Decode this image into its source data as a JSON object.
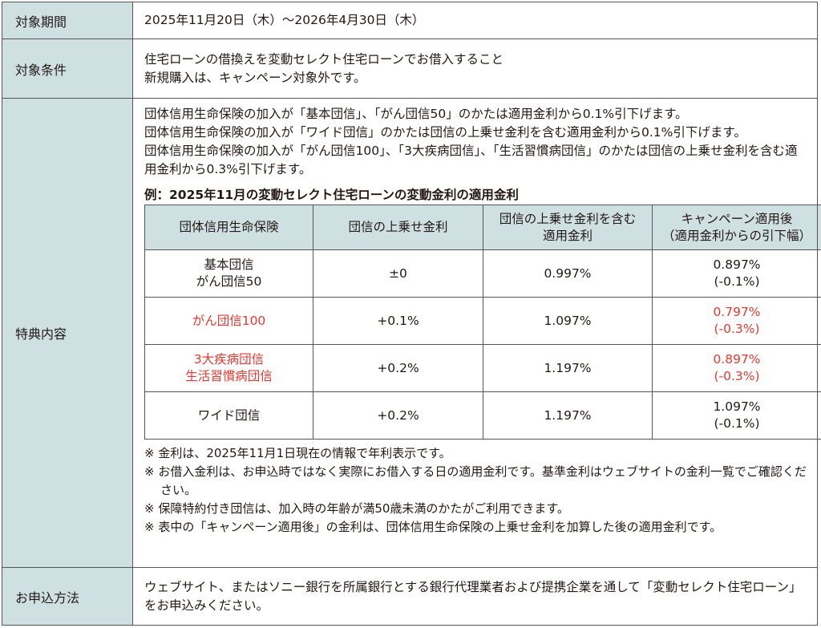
{
  "rows": {
    "period": {
      "label": "対象期間",
      "text": "2025年11月20日（木）〜2026年4月30日（木）"
    },
    "conditions": {
      "label": "対象条件",
      "lines": [
        "住宅ローンの借換えを変動セレクト住宅ローンでお借入すること",
        "新規購入は、キャンペーン対象外です。"
      ]
    },
    "benefits": {
      "label": "特典内容",
      "paragraphs": [
        "団体信用生命保険の加入が「基本団信」、「がん団信50」のかたは適用金利から0.1%引下げます。",
        "団体信用生命保険の加入が「ワイド団信」のかたは団信の上乗せ金利を含む適用金利から0.1%引下げます。",
        "団体信用生命保険の加入が「がん団信100」、「3大疾病団信」、「生活習慣病団信」のかたは団信の上乗せ金利を含む適用金利から0.3%引下げます。"
      ],
      "example_title": "例：2025年11月の変動セレクト住宅ローンの変動金利の適用金利",
      "table": {
        "headers": [
          [
            "団体信用生命保険"
          ],
          [
            "団信の上乗せ金利"
          ],
          [
            "団信の上乗せ金利を含む",
            "適用金利"
          ],
          [
            "キャンペーン適用後",
            "（適用金利からの引下幅）"
          ]
        ],
        "rows": [
          {
            "plan": [
              "基本団信",
              "がん団信50"
            ],
            "surcharge": "±0",
            "rate": "0.997%",
            "after": [
              "0.897%",
              "(-0.1%)"
            ],
            "highlight": false
          },
          {
            "plan": [
              "がん団信100"
            ],
            "surcharge": "+0.1%",
            "rate": "1.097%",
            "after": [
              "0.797%",
              "(-0.3%)"
            ],
            "highlight": true
          },
          {
            "plan": [
              "3大疾病団信",
              "生活習慣病団信"
            ],
            "surcharge": "+0.2%",
            "rate": "1.197%",
            "after": [
              "0.897%",
              "(-0.3%)"
            ],
            "highlight": true
          },
          {
            "plan": [
              "ワイド団信"
            ],
            "surcharge": "+0.2%",
            "rate": "1.197%",
            "after": [
              "1.097%",
              "(-0.1%)"
            ],
            "highlight": false
          }
        ]
      },
      "notes": [
        "※ 金利は、2025年11月1日現在の情報で年利表示です。",
        "※ お借入金利は、お申込時ではなく実際にお借入する日の適用金利です。基準金利はウェブサイトの金利一覧でご確認ください。",
        "※ 保障特約付き団信は、加入時の年齢が満50歳未満のかたがご利用できます。",
        "※ 表中の「キャンペーン適用後」の金利は、団体信用生命保険の上乗せ金利を加算した後の適用金利です。"
      ]
    },
    "apply": {
      "label": "お申込方法",
      "text": "ウェブサイト、またはソニー銀行を所属銀行とする銀行代理業者および提携企業を通して「変動セレクト住宅ローン」をお申込みください。"
    }
  },
  "colors": {
    "label_bg": "#cfe0e2",
    "highlight": "#e8382f",
    "border": "#555555"
  }
}
